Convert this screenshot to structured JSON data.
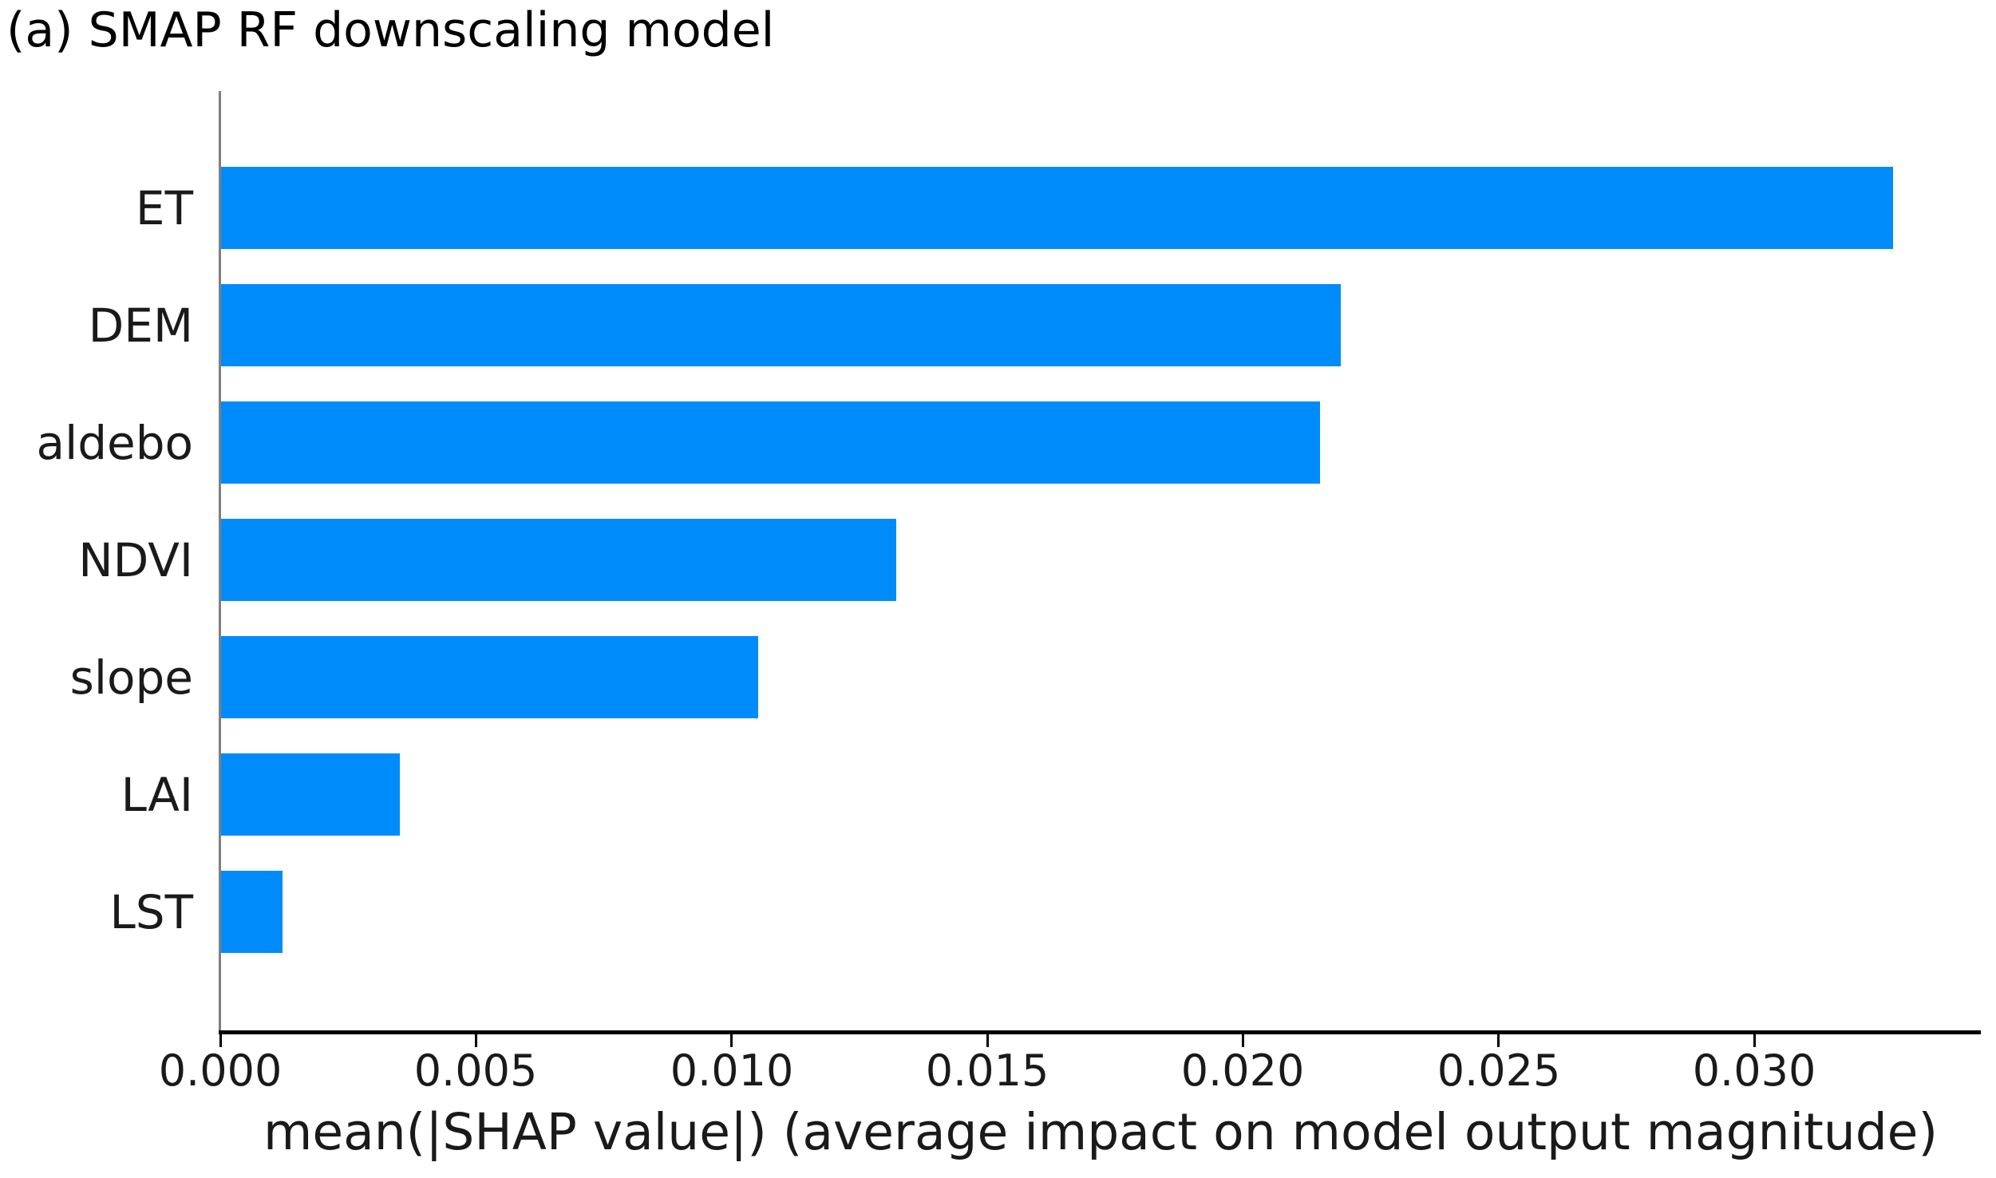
{
  "figure": {
    "title": "(a) SMAP RF downscaling model"
  },
  "chart_data": {
    "type": "bar",
    "orientation": "horizontal",
    "title": "(a) SMAP RF downscaling model",
    "categories": [
      "ET",
      "DEM",
      "aldebo",
      "NDVI",
      "slope",
      "LAI",
      "LST"
    ],
    "values": [
      0.0327,
      0.0219,
      0.0215,
      0.0132,
      0.0105,
      0.0035,
      0.0012
    ],
    "xlabel": "mean(|SHAP value|) (average impact on model output magnitude)",
    "ylabel": "",
    "xlim": [
      0.0,
      0.0344
    ],
    "xticks": [
      0.0,
      0.005,
      0.01,
      0.015,
      0.02,
      0.025,
      0.03
    ],
    "xtick_labels": [
      "0.000",
      "0.005",
      "0.010",
      "0.015",
      "0.020",
      "0.025",
      "0.030"
    ],
    "bar_color": "#008bfb",
    "left_spine_color": "#7f7f7f",
    "bottom_spine_color": "#000000",
    "text_color": "#1a1a1a",
    "grid": false,
    "legend": null,
    "background": "#ffffff"
  }
}
